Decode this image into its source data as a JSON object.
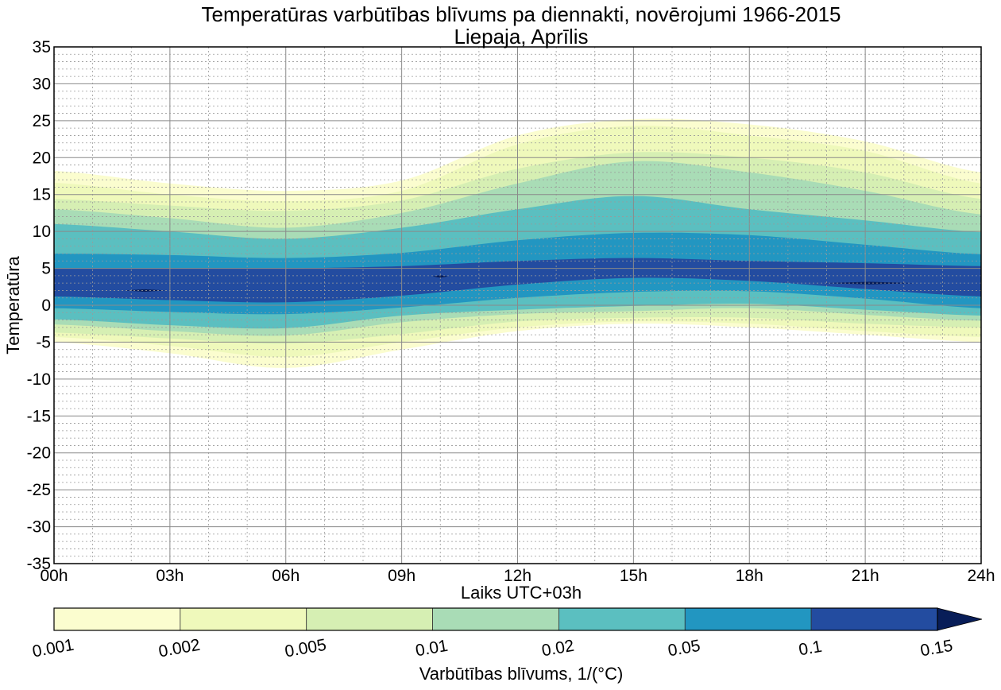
{
  "chart_data": {
    "type": "contourf",
    "title": "Temperatūras varbūtības blīvums pa diennakti, novērojumi 1966-2015",
    "subtitle": "Liepaja, Aprīlis",
    "xlabel": "Laiks UTC+03h",
    "ylabel": "Temperatūra",
    "xlim": [
      0,
      24
    ],
    "ylim": [
      -35,
      35
    ],
    "x_ticks": [
      0,
      3,
      6,
      9,
      12,
      15,
      18,
      21,
      24
    ],
    "x_tick_labels": [
      "00h",
      "03h",
      "06h",
      "09h",
      "12h",
      "15h",
      "18h",
      "21h",
      "24h"
    ],
    "y_ticks": [
      35,
      30,
      25,
      20,
      15,
      10,
      5,
      0,
      -5,
      -10,
      -15,
      -20,
      -25,
      -30,
      -35
    ],
    "y_tick_labels": [
      "35",
      "30",
      "25",
      "20",
      "15",
      "10",
      "5",
      "0",
      "-5",
      "-10",
      "-15",
      "-20",
      "-25",
      "-30",
      "-35"
    ],
    "grid": {
      "major": true,
      "minor": true,
      "minor_step_x_hours": 1,
      "minor_step_y_deg": 1
    },
    "colorbar": {
      "label": "Varbūtības blīvums, 1/(°C)",
      "placement": "bottom",
      "levels": [
        0.001,
        0.002,
        0.005,
        0.01,
        0.02,
        0.05,
        0.1,
        0.15
      ],
      "level_labels": [
        "0.001",
        "0.002",
        "0.005",
        "0.01",
        "0.02",
        "0.05",
        "0.1",
        "0.15"
      ],
      "colors": [
        "#fbfdcf",
        "#eff9bb",
        "#d6efb3",
        "#a9dcb6",
        "#5bbfc0",
        "#2296c1",
        "#234ca0",
        "#081d58"
      ],
      "extend": "max"
    },
    "hours": [
      0,
      3,
      6,
      9,
      12,
      15,
      18,
      21,
      24
    ],
    "bands": [
      {
        "level": 0.001,
        "upper": [
          18.2,
          16.5,
          15.5,
          16.9,
          23.0,
          25.2,
          24.5,
          22.2,
          18.0
        ],
        "lower": [
          -5.0,
          -6.5,
          -8.5,
          -6.0,
          -3.5,
          -2.5,
          -3.0,
          -4.0,
          -5.0
        ]
      },
      {
        "level": 0.002,
        "upper": [
          16.6,
          15.0,
          14.1,
          15.5,
          21.8,
          24.3,
          23.0,
          20.9,
          16.5
        ],
        "lower": [
          -4.3,
          -5.5,
          -7.0,
          -5.0,
          -3.0,
          -2.2,
          -2.5,
          -3.5,
          -4.3
        ]
      },
      {
        "level": 0.005,
        "upper": [
          14.4,
          13.5,
          12.8,
          14.2,
          18.5,
          20.7,
          20.0,
          18.0,
          14.4
        ],
        "lower": [
          -3.7,
          -4.5,
          -5.2,
          -3.9,
          -2.2,
          -1.7,
          -1.7,
          -2.5,
          -3.0
        ]
      },
      {
        "level": 0.01,
        "upper": [
          13.0,
          11.8,
          10.5,
          12.5,
          16.5,
          19.5,
          18.0,
          15.5,
          12.3
        ],
        "lower": [
          -2.6,
          -3.5,
          -4.1,
          -2.3,
          -1.2,
          -0.8,
          -0.4,
          -1.3,
          -2.1
        ]
      },
      {
        "level": 0.02,
        "upper": [
          11.0,
          10.0,
          9.0,
          10.5,
          13.0,
          14.8,
          13.0,
          11.5,
          9.9
        ],
        "lower": [
          -1.9,
          -2.7,
          -3.1,
          -1.4,
          -0.6,
          -0.1,
          0.2,
          -0.6,
          -1.4
        ]
      },
      {
        "level": 0.05,
        "upper": [
          7.0,
          6.8,
          6.4,
          7.1,
          8.8,
          9.8,
          9.5,
          8.2,
          6.9
        ],
        "lower": [
          -0.4,
          -0.9,
          -1.2,
          -0.3,
          1.0,
          1.8,
          1.9,
          0.9,
          -0.4
        ]
      },
      {
        "level": 0.1,
        "upper": [
          5.0,
          5.0,
          5.0,
          5.3,
          6.0,
          6.4,
          6.0,
          5.7,
          5.3
        ],
        "lower": [
          1.2,
          0.7,
          0.4,
          1.3,
          2.8,
          3.7,
          3.3,
          2.2,
          1.2
        ]
      }
    ],
    "peaks": [
      {
        "level": 0.15,
        "x_from": 1.8,
        "x_to": 2.9,
        "y": 2.0
      },
      {
        "level": 0.15,
        "x_from": 9.8,
        "x_to": 10.2,
        "y": 3.9
      },
      {
        "level": 0.15,
        "x_from": 19.9,
        "x_to": 22.3,
        "y": 3.0
      }
    ]
  }
}
